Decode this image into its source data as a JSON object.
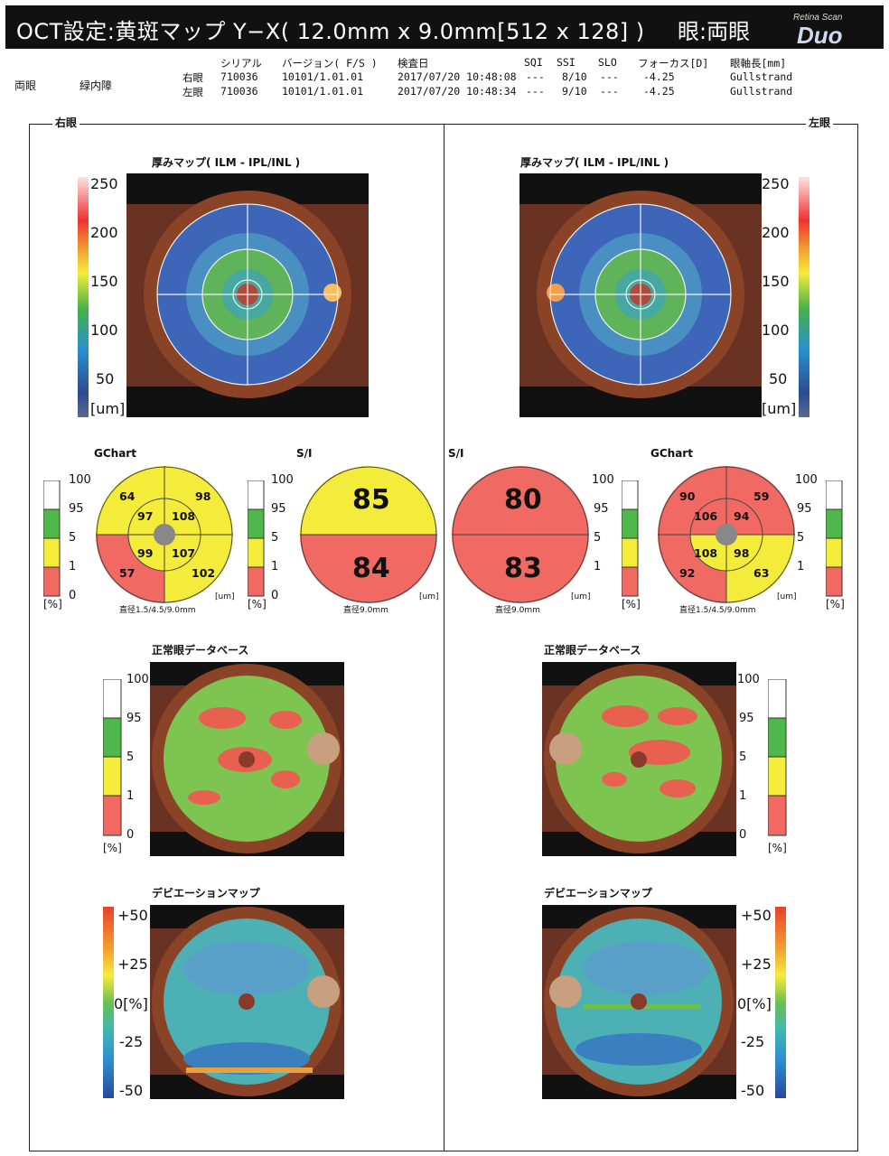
{
  "header": {
    "title": "OCT設定:黄斑マップ Y−X( 12.0mm x 9.0mm[512 x 128] )",
    "eye": "眼:両眼",
    "logo_small": "Retina Scan",
    "logo_big": "Duo"
  },
  "patient": {
    "eyes": "両眼",
    "diagnosis": "緑内障"
  },
  "info_table": {
    "columns": [
      "シリアル",
      "バージョン( F/S )",
      "検査日",
      "SQI",
      "SSI",
      "SLO",
      "フォーカス[D]",
      "眼軸長[mm]"
    ],
    "rows": [
      {
        "eye": "右眼",
        "serial": "710036",
        "version": "10101/1.01.01",
        "date": "2017/07/20 10:48:08",
        "sqi": "---",
        "ssi": "8/10",
        "slo": "---",
        "focus": "-4.25",
        "axial": "Gullstrand"
      },
      {
        "eye": "左眼",
        "serial": "710036",
        "version": "10101/1.01.01",
        "date": "2017/07/20 10:48:34",
        "sqi": "---",
        "ssi": "9/10",
        "slo": "---",
        "focus": "-4.25",
        "axial": "Gullstrand"
      }
    ]
  },
  "sections": {
    "right": "右眼",
    "left": "左眼"
  },
  "thickness": {
    "title": "厚みマップ( ILM - IPL/INL )",
    "scale": [
      "250",
      "200",
      "150",
      "100",
      "50"
    ],
    "unit": "[um]"
  },
  "gchart": {
    "title": "GChart",
    "scale": [
      "100",
      "95",
      "5",
      "1",
      "0"
    ],
    "pct": "[%]",
    "um": "[um]",
    "diam": "直径1.5/4.5/9.0mm",
    "right": {
      "outer_tl": "64",
      "outer_tr": "98",
      "outer_bl": "57",
      "outer_br": "102",
      "inner_tl": "97",
      "inner_tr": "108",
      "inner_bl": "99",
      "inner_br": "107"
    },
    "left": {
      "outer_tl": "90",
      "outer_tr": "59",
      "outer_bl": "92",
      "outer_br": "63",
      "inner_tl": "106",
      "inner_tr": "94",
      "inner_bl": "108",
      "inner_br": "98"
    }
  },
  "si": {
    "title": "S/I",
    "diam": "直径9.0mm",
    "um": "[um]",
    "right": {
      "superior": "85",
      "inferior": "84"
    },
    "left": {
      "superior": "80",
      "inferior": "83"
    }
  },
  "normative": {
    "title": "正常眼データベース",
    "scale": [
      "100",
      "95",
      "5",
      "1",
      "0"
    ],
    "pct": "[%]"
  },
  "deviation": {
    "title": "デビエーションマップ",
    "scale": [
      "+50",
      "+25",
      "0[%]",
      "-25",
      "-50"
    ]
  },
  "colors": {
    "yellow": "#f4ec3a",
    "red": "#f06a63",
    "green": "#4fb84a",
    "white": "#ffffff"
  }
}
